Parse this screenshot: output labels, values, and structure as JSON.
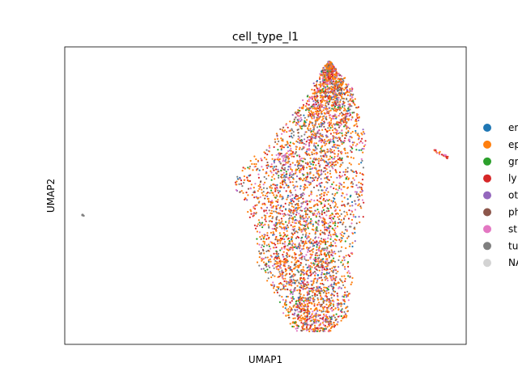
{
  "chart_data": {
    "type": "scatter",
    "title": "cell_type_l1",
    "xlabel": "UMAP1",
    "ylabel": "UMAP2",
    "grid": false,
    "ticks": false,
    "legend_position": "right (outside plot, clipped)",
    "categories": [
      {
        "label": "en",
        "color": "#1f77b4"
      },
      {
        "label": "ep",
        "color": "#ff7f0e"
      },
      {
        "label": "gr",
        "color": "#2ca02c"
      },
      {
        "label": "ly",
        "color": "#d62728"
      },
      {
        "label": "ot",
        "color": "#9467bd"
      },
      {
        "label": "ph",
        "color": "#8c564b"
      },
      {
        "label": "st",
        "color": "#e377c2"
      },
      {
        "label": "tu",
        "color": "#7f7f7f"
      },
      {
        "label": "NA",
        "color": "#d3d3d3"
      }
    ],
    "clusters": [
      {
        "description": "main cloud",
        "center": [
          0.0,
          0.0
        ]
      },
      {
        "description": "small right cluster",
        "center": [
          4.2,
          1.2
        ]
      },
      {
        "description": "isolated left point",
        "center": [
          -8.9,
          -0.4
        ]
      }
    ]
  }
}
